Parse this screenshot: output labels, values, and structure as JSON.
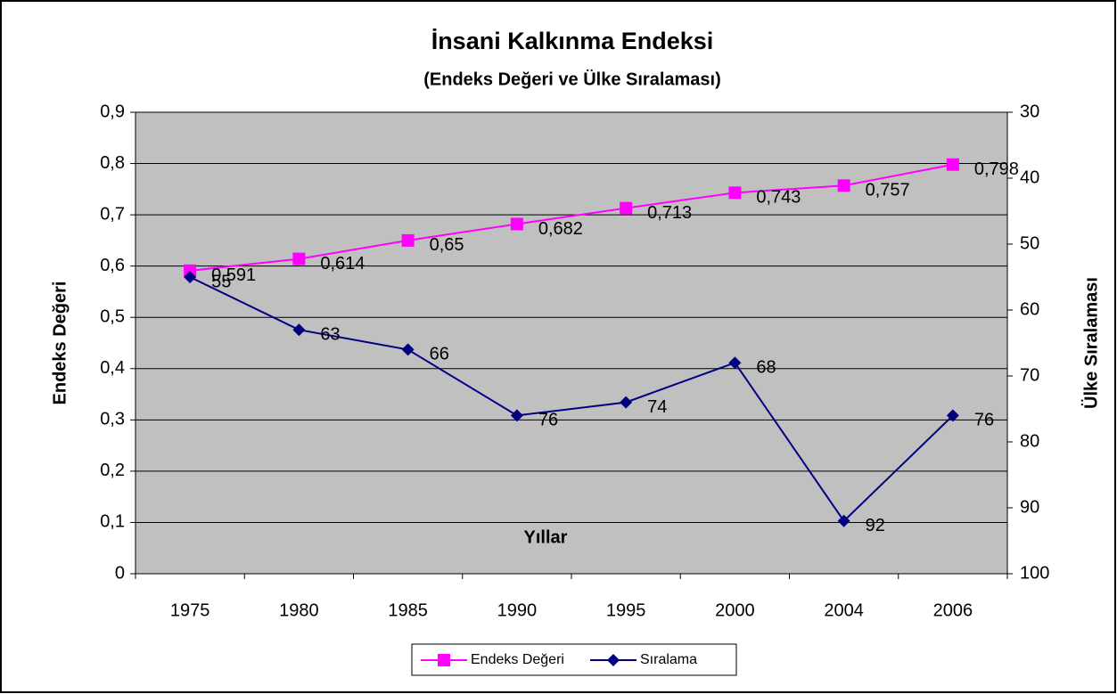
{
  "chart_data": {
    "type": "line",
    "title": "İnsani Kalkınma Endeksi",
    "subtitle": "(Endeks Değeri ve Ülke Sıralaması)",
    "x_label": "Yıllar",
    "y_label": "Endeks Değeri",
    "y2_label": "Ülke Sıralaması",
    "categories": [
      "1975",
      "1980",
      "1985",
      "1990",
      "1995",
      "2000",
      "2004",
      "2006"
    ],
    "series": [
      {
        "name": "Endeks Değeri",
        "color": "#ff00ff",
        "marker": "square",
        "values": [
          0.591,
          0.614,
          0.65,
          0.682,
          0.713,
          0.743,
          0.757,
          0.798
        ],
        "value_labels": [
          "0,591",
          "0,614",
          "0,65",
          "0,682",
          "0,713",
          "0,743",
          "0,757",
          "0,798"
        ]
      },
      {
        "name": "Sıralama",
        "color": "#000080",
        "marker": "diamond",
        "axis": "y2",
        "values": [
          55,
          63,
          66,
          76,
          74,
          68,
          92,
          76
        ]
      }
    ],
    "ylim": [
      0,
      0.9
    ],
    "yticks": [
      0,
      {
        "value": 0.1,
        "label": "0,1"
      },
      {
        "value": 0.2,
        "label": "0,2"
      },
      {
        "value": 0.3,
        "label": "0,3"
      },
      {
        "value": 0.4,
        "label": "0,4"
      },
      {
        "value": 0.5,
        "label": "0,5"
      },
      {
        "value": 0.6,
        "label": "0,6"
      },
      {
        "value": 0.7,
        "label": "0,7"
      },
      {
        "value": 0.8,
        "label": "0,8"
      },
      {
        "value": 0.9,
        "label": "0,9"
      }
    ],
    "y2lim": [
      100,
      30
    ],
    "y2ticks": [
      30,
      40,
      50,
      60,
      70,
      80,
      90,
      100
    ],
    "grid": true,
    "legend": "bottom"
  }
}
